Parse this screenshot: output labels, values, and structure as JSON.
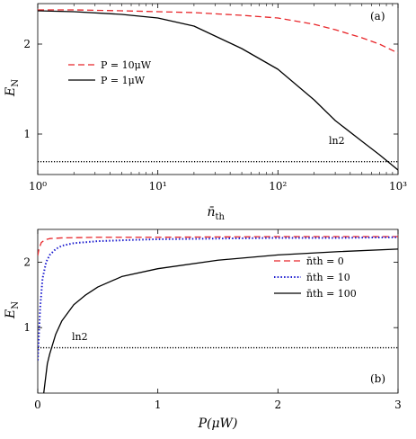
{
  "chart_data": [
    {
      "panel": "(a)",
      "type": "line",
      "xscale": "log",
      "xlabel": "n̄th",
      "ylabel": "EN",
      "xlim": [
        1,
        1000
      ],
      "ylim": [
        0.55,
        2.45
      ],
      "xticks": [
        1,
        10,
        100,
        1000
      ],
      "xtick_labels": [
        "10⁰",
        "10¹",
        "10²",
        "10³"
      ],
      "yticks": [
        1,
        2
      ],
      "ytick_labels": [
        "1",
        "2"
      ],
      "grid": false,
      "legend_position": "middle-left",
      "annotation": "ln2",
      "reference_line": {
        "label": "ln2",
        "y": 0.693,
        "style": "dotted",
        "color": "#000000"
      },
      "series": [
        {
          "name": "P = 10μW",
          "color": "#e8262a",
          "style": "dashed",
          "x": [
            1,
            2,
            5,
            10,
            20,
            50,
            100,
            200,
            300,
            500,
            700,
            1000
          ],
          "y": [
            2.38,
            2.38,
            2.37,
            2.36,
            2.35,
            2.32,
            2.29,
            2.22,
            2.16,
            2.07,
            2.0,
            1.9
          ]
        },
        {
          "name": "P = 1μW",
          "color": "#000000",
          "style": "solid",
          "x": [
            1,
            2,
            5,
            10,
            20,
            50,
            100,
            200,
            300,
            500,
            700,
            1000
          ],
          "y": [
            2.37,
            2.36,
            2.33,
            2.29,
            2.2,
            1.95,
            1.72,
            1.38,
            1.15,
            0.92,
            0.77,
            0.6
          ]
        }
      ]
    },
    {
      "panel": "(b)",
      "type": "line",
      "xscale": "linear",
      "xlabel": "P(μW)",
      "ylabel": "EN",
      "xlim": [
        0,
        3
      ],
      "ylim": [
        0,
        2.5
      ],
      "xticks": [
        0,
        1,
        2,
        3
      ],
      "xtick_labels": [
        "0",
        "1",
        "2",
        "3"
      ],
      "yticks": [
        1,
        2
      ],
      "ytick_labels": [
        "1",
        "2"
      ],
      "grid": false,
      "legend_position": "right",
      "annotation": "ln2",
      "reference_line": {
        "label": "ln2",
        "y": 0.693,
        "style": "dotted",
        "color": "#000000"
      },
      "series": [
        {
          "name": "n̄th = 0",
          "color": "#e8262a",
          "style": "dashed",
          "x": [
            0,
            0.01,
            0.03,
            0.06,
            0.1,
            0.2,
            0.5,
            1,
            2,
            3
          ],
          "y": [
            2.1,
            2.2,
            2.3,
            2.34,
            2.36,
            2.37,
            2.38,
            2.38,
            2.39,
            2.39
          ]
        },
        {
          "name": "n̄th = 10",
          "color": "#1c1ccf",
          "style": "dotted",
          "x": [
            0,
            0.02,
            0.04,
            0.07,
            0.1,
            0.15,
            0.2,
            0.3,
            0.5,
            0.8,
            1,
            1.5,
            2,
            2.5,
            3
          ],
          "y": [
            0.5,
            1.3,
            1.75,
            2.0,
            2.11,
            2.2,
            2.25,
            2.29,
            2.32,
            2.34,
            2.35,
            2.36,
            2.37,
            2.37,
            2.38
          ]
        },
        {
          "name": "n̄th = 100",
          "color": "#000000",
          "style": "solid",
          "x": [
            0.05,
            0.08,
            0.1,
            0.15,
            0.2,
            0.3,
            0.4,
            0.5,
            0.7,
            1,
            1.5,
            2,
            2.5,
            3
          ],
          "y": [
            0.0,
            0.45,
            0.6,
            0.9,
            1.1,
            1.35,
            1.5,
            1.62,
            1.78,
            1.9,
            2.03,
            2.11,
            2.16,
            2.2
          ]
        }
      ]
    }
  ]
}
